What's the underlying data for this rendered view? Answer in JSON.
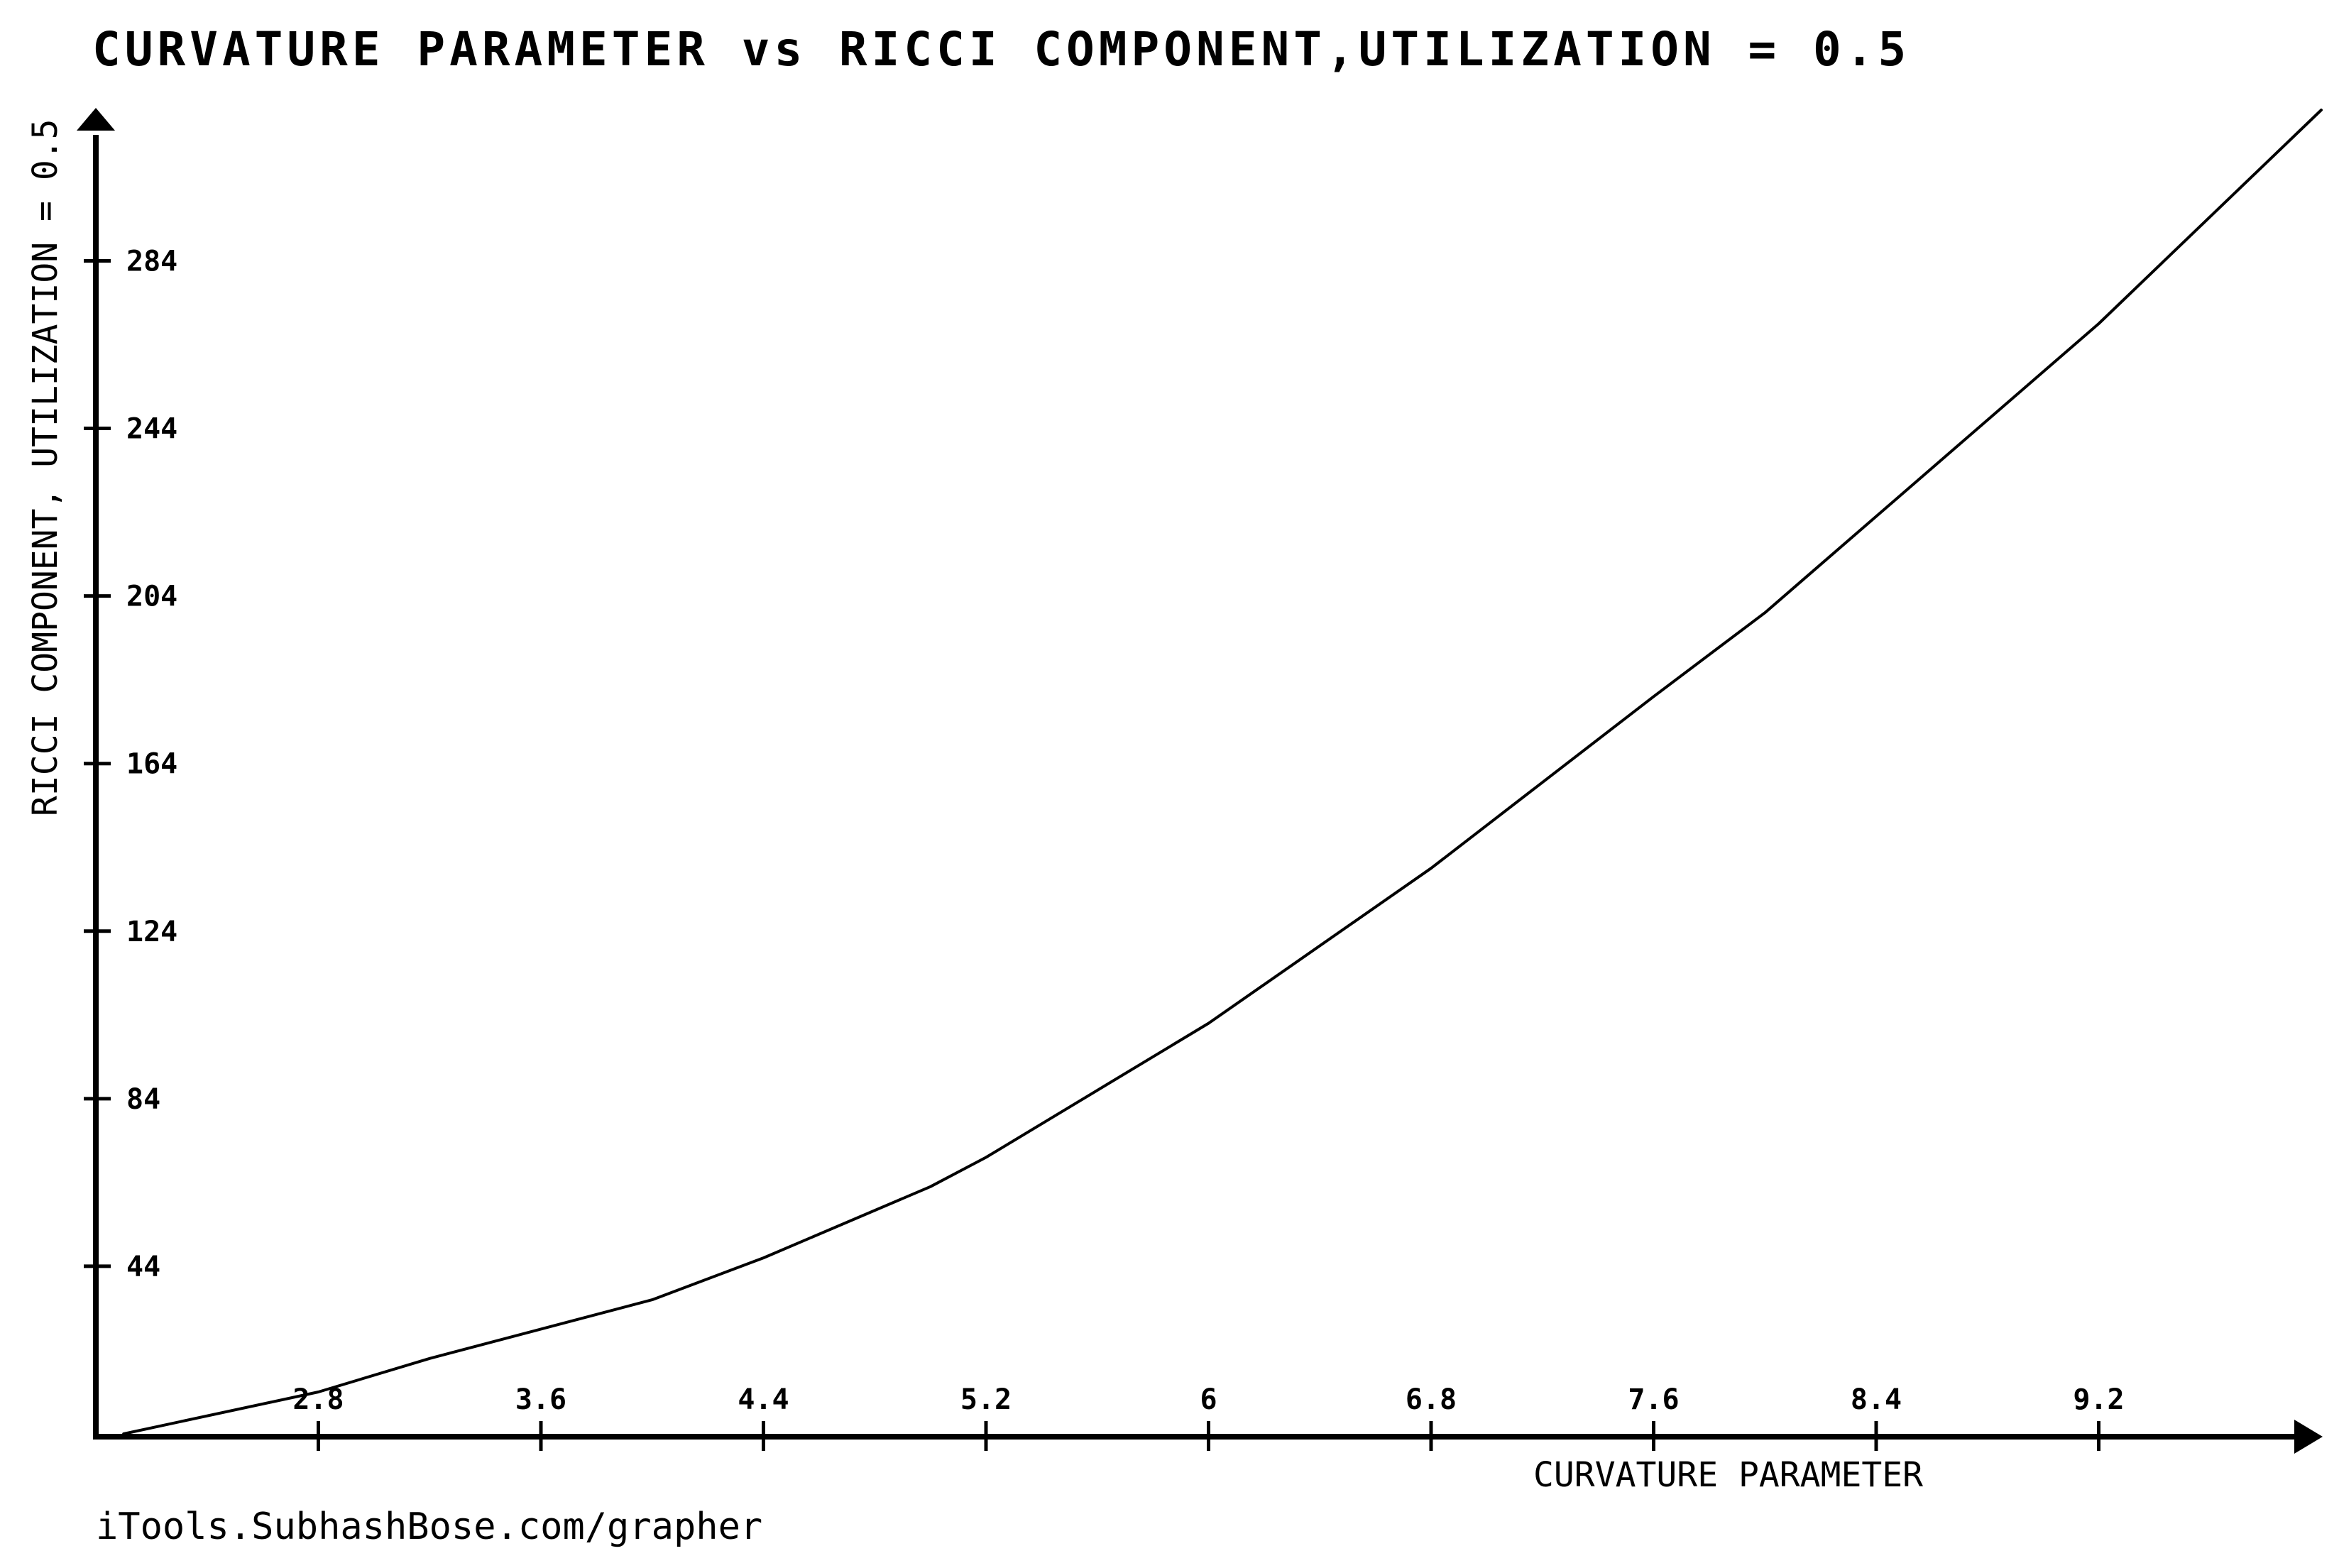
{
  "chart_data": {
    "type": "line",
    "title": "CURVATURE PARAMETER vs RICCI COMPONENT,UTILIZATION = 0.5",
    "xlabel": "CURVATURE PARAMETER",
    "ylabel": "RICCI COMPONENT, UTILIZATION = 0.5",
    "xlim": [
      2,
      10
    ],
    "ylim": [
      4,
      320
    ],
    "x_ticks": [
      "2.8",
      "3.6",
      "4.4",
      "5.2",
      "6",
      "6.8",
      "7.6",
      "8.4",
      "9.2"
    ],
    "y_ticks": [
      "44",
      "84",
      "124",
      "164",
      "204",
      "244",
      "284"
    ],
    "x_tick_values": [
      2.8,
      3.6,
      4.4,
      5.2,
      6,
      6.8,
      7.6,
      8.4,
      9.2
    ],
    "y_tick_values": [
      44,
      84,
      124,
      164,
      204,
      244,
      284
    ],
    "grid": false,
    "legend": "none",
    "series": [
      {
        "x": [
          2.1,
          2.8,
          3.2,
          4.0,
          4.4,
          5.0,
          5.2,
          6.0,
          6.8,
          7.6,
          8.0,
          8.4,
          9.2,
          10.0
        ],
        "y": [
          4,
          14,
          22,
          36,
          46,
          63,
          70,
          102,
          139,
          180,
          200,
          223,
          269,
          320
        ]
      }
    ]
  },
  "credit": "iTools.SubhashBose.com/grapher",
  "colors": {
    "line": "#000000",
    "background": "#ffffff"
  }
}
